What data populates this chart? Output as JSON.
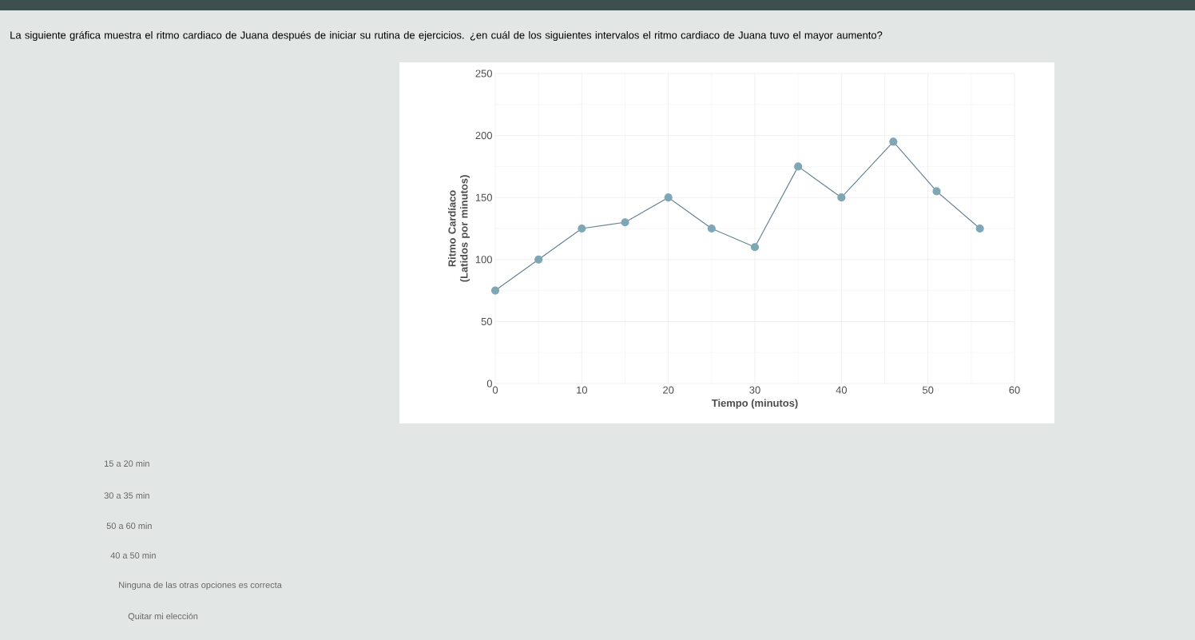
{
  "chart_data": {
    "type": "line",
    "title": "La siguiente gráfica muestra el ritmo cardiaco de Juana después de iniciar su rutina de ejercicios. ¿en cuál de los siguientes intervalos el ritmo cardiaco de Juana tuvo el mayor aumento?",
    "xlabel": "Tiempo (minutos)",
    "ylabel": "Ritmo Cardíaco (Latidos por minutos)",
    "x": [
      0,
      5,
      10,
      15,
      20,
      25,
      30,
      35,
      40,
      46,
      51,
      56
    ],
    "series": [
      {
        "color": "#7fa6b5",
        "values": [
          75,
          100,
          125,
          130,
          150,
          125,
          110,
          175,
          150,
          195,
          155,
          125
        ]
      }
    ],
    "xlim": [
      0,
      60
    ],
    "ylim": [
      0,
      250
    ],
    "xticks": [
      0,
      10,
      20,
      30,
      40,
      50,
      60
    ],
    "yticks": [
      0,
      50,
      100,
      150,
      200,
      250
    ],
    "grid": true,
    "marker": "circle",
    "line_style": "solid",
    "annotations": [
      "15 a 20 min",
      "30 a 35 min",
      "50 a 60 min",
      "40 a 50 min",
      "Ninguna de las otras opciones es correcta",
      "Quitar mi elección"
    ]
  }
}
